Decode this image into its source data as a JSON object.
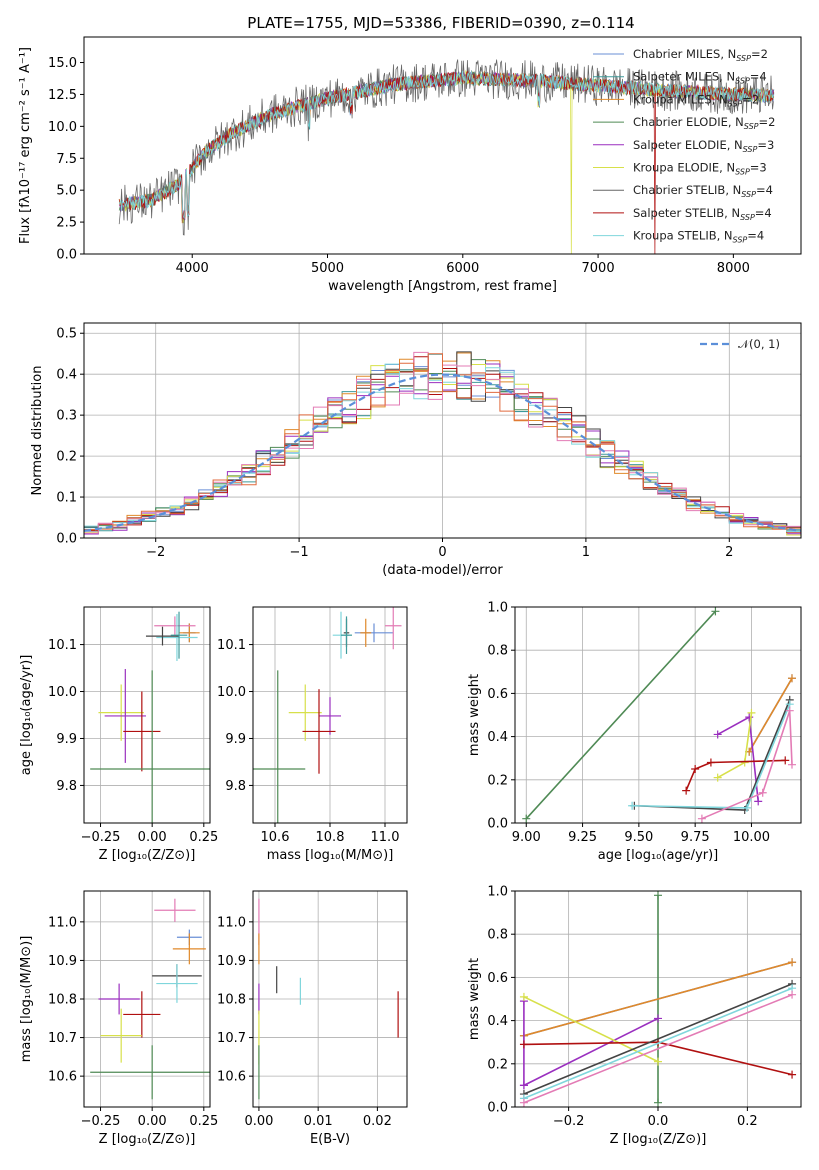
{
  "title": "PLATE=1755, MJD=53386, FIBERID=0390, z=0.114",
  "colors": {
    "Chabrier MILES": "#6a8fd6",
    "Salpeter MILES": "#3e9a9a",
    "Kroupa MILES": "#e0892a",
    "Chabrier ELODIE": "#4f8a55",
    "Salpeter ELODIE": "#9a2fbf",
    "Kroupa ELODIE": "#d7e04a",
    "Chabrier STELIB": "#444444",
    "Salpeter STELIB": "#b01010",
    "Kroupa STELIB": "#7fd6dc",
    "gauss": "#5b8fd9",
    "pink": "#e37bb5"
  },
  "legend": [
    {
      "name": "Chabrier MILES",
      "nssp": "2"
    },
    {
      "name": "Salpeter MILES",
      "nssp": "4"
    },
    {
      "name": "Kroupa MILES",
      "nssp": "2"
    },
    {
      "name": "Chabrier ELODIE",
      "nssp": "2"
    },
    {
      "name": "Salpeter ELODIE",
      "nssp": "3"
    },
    {
      "name": "Kroupa ELODIE",
      "nssp": "3"
    },
    {
      "name": "Chabrier STELIB",
      "nssp": "4"
    },
    {
      "name": "Salpeter STELIB",
      "nssp": "4"
    },
    {
      "name": "Kroupa STELIB",
      "nssp": "4"
    }
  ],
  "chart_data": [
    {
      "type": "line",
      "panel": "spectrum",
      "xlabel": "wavelength [Angstrom, rest frame]",
      "ylabel": "Flux [fλ10⁻¹⁷ erg cm⁻² s⁻¹ A⁻¹]",
      "xlim": [
        3200,
        8500
      ],
      "ylim": [
        0,
        17
      ],
      "xticks": [
        "4000",
        "5000",
        "6000",
        "7000",
        "8000"
      ],
      "yticks": [
        "0.0",
        "2.5",
        "5.0",
        "7.5",
        "10.0",
        "12.5",
        "15.0"
      ],
      "continuum": {
        "x": [
          3450,
          3700,
          3900,
          4100,
          4300,
          4600,
          5000,
          5500,
          6000,
          6500,
          7000,
          7500,
          8000,
          8300
        ],
        "y": [
          3.8,
          4.2,
          5.5,
          8.0,
          9.5,
          11.0,
          12.2,
          13.3,
          13.8,
          13.6,
          13.2,
          12.8,
          12.5,
          12.4
        ]
      }
    },
    {
      "type": "line",
      "panel": "residual-distribution",
      "xlabel": "(data-model)/error",
      "ylabel": "Normed distribution",
      "xlim": [
        -2.5,
        2.5
      ],
      "ylim": [
        0,
        0.525
      ],
      "xticks": [
        "−2",
        "−1",
        "0",
        "1",
        "2"
      ],
      "yticks": [
        "0.0",
        "0.1",
        "0.2",
        "0.3",
        "0.4",
        "0.5"
      ],
      "legend": "𝒩(0, 1)",
      "gaussian": {
        "mu": 0,
        "sigma": 1
      }
    },
    {
      "type": "scatter",
      "panel": "age-vs-Z",
      "xlabel": "Z [log₁₀(Z/Z⊙)]",
      "ylabel": "age  [log₁₀(age/yr)]",
      "xlim": [
        -0.33,
        0.28
      ],
      "ylim": [
        9.72,
        10.18
      ],
      "xticks": [
        "−0.25",
        "0.00",
        "0.25"
      ],
      "yticks": [
        "9.8",
        "9.9",
        "10.0",
        "10.1"
      ],
      "points": [
        {
          "series": "Chabrier MILES",
          "x": 0.18,
          "y": 10.125,
          "xerr": 0.03,
          "yerr": 0.02
        },
        {
          "series": "Kroupa MILES",
          "x": 0.18,
          "y": 10.125,
          "xerr": 0.05,
          "yerr": 0.02
        },
        {
          "series": "pink",
          "x": 0.11,
          "y": 10.14,
          "xerr": 0.1,
          "yerr": 0.02
        },
        {
          "series": "Kroupa STELIB",
          "x": 0.12,
          "y": 10.115,
          "xerr": 0.1,
          "yerr": 0.05
        },
        {
          "series": "Chabrier STELIB",
          "x": 0.05,
          "y": 10.118,
          "xerr": 0.08,
          "yerr": 0.02
        },
        {
          "series": "Salpeter MILES",
          "x": 0.13,
          "y": 10.12,
          "xerr": 0.04,
          "yerr": 0.05
        },
        {
          "series": "Kroupa ELODIE",
          "x": -0.15,
          "y": 9.955,
          "xerr": 0.11,
          "yerr": 0.06
        },
        {
          "series": "Salpeter ELODIE",
          "x": -0.13,
          "y": 9.948,
          "xerr": 0.1,
          "yerr": 0.1
        },
        {
          "series": "Salpeter STELIB",
          "x": -0.05,
          "y": 9.915,
          "xerr": 0.09,
          "yerr": 0.085
        },
        {
          "series": "Chabrier ELODIE",
          "x": 0.0,
          "y": 9.835,
          "xerr": 0.3,
          "yerr": 0.21
        }
      ]
    },
    {
      "type": "scatter",
      "panel": "age-vs-mass",
      "xlabel": "mass [log₁₀(M/M⊙)]",
      "ylabel": "",
      "xlim": [
        10.52,
        11.08
      ],
      "ylim": [
        9.72,
        10.18
      ],
      "xticks": [
        "10.6",
        "10.8",
        "11.0"
      ],
      "yticks": [
        "9.8",
        "9.9",
        "10.0",
        "10.1"
      ],
      "points": [
        {
          "series": "Chabrier MILES",
          "x": 10.96,
          "y": 10.125,
          "xerr": 0.07,
          "yerr": 0.02
        },
        {
          "series": "Kroupa MILES",
          "x": 10.93,
          "y": 10.125,
          "xerr": 0.02,
          "yerr": 0.03
        },
        {
          "series": "pink",
          "x": 11.03,
          "y": 10.14,
          "xerr": 0.03,
          "yerr": 0.05
        },
        {
          "series": "Kroupa STELIB",
          "x": 10.84,
          "y": 10.12,
          "xerr": 0.03,
          "yerr": 0.05
        },
        {
          "series": "Chabrier STELIB",
          "x": 10.86,
          "y": 10.125,
          "xerr": 0.01,
          "yerr": 0.03
        },
        {
          "series": "Salpeter MILES",
          "x": 10.86,
          "y": 10.12,
          "xerr": 0.02,
          "yerr": 0.04
        },
        {
          "series": "Kroupa ELODIE",
          "x": 10.71,
          "y": 9.955,
          "xerr": 0.06,
          "yerr": 0.06
        },
        {
          "series": "Salpeter ELODIE",
          "x": 10.8,
          "y": 9.948,
          "xerr": 0.04,
          "yerr": 0.04
        },
        {
          "series": "Salpeter STELIB",
          "x": 10.76,
          "y": 9.915,
          "xerr": 0.06,
          "yerr": 0.09
        },
        {
          "series": "Chabrier ELODIE",
          "x": 10.61,
          "y": 9.835,
          "xerr": 0.1,
          "yerr": 0.21
        }
      ]
    },
    {
      "type": "line",
      "panel": "mass-weight-vs-age",
      "xlabel": "age  [log₁₀(age/yr)]",
      "ylabel": "mass weight",
      "xlim": [
        8.95,
        10.22
      ],
      "ylim": [
        0,
        1
      ],
      "xticks": [
        "9.00",
        "9.25",
        "9.50",
        "9.75",
        "10.00"
      ],
      "yticks": [
        "0.0",
        "0.2",
        "0.4",
        "0.6",
        "0.8",
        "1.0"
      ],
      "series": [
        {
          "name": "Chabrier ELODIE",
          "x": [
            9.0,
            9.84
          ],
          "y": [
            0.02,
            0.98
          ]
        },
        {
          "name": "Chabrier MILES",
          "x": [
            9.99,
            10.18
          ],
          "y": [
            0.33,
            0.67
          ]
        },
        {
          "name": "Kroupa MILES",
          "x": [
            9.99,
            10.18
          ],
          "y": [
            0.33,
            0.67
          ]
        },
        {
          "name": "Salpeter ELODIE",
          "x": [
            9.85,
            9.99,
            10.03
          ],
          "y": [
            0.41,
            0.49,
            0.1
          ]
        },
        {
          "name": "Kroupa ELODIE",
          "x": [
            9.85,
            9.97,
            10.0
          ],
          "y": [
            0.21,
            0.28,
            0.51
          ]
        },
        {
          "name": "Salpeter STELIB",
          "x": [
            9.71,
            9.75,
            9.82,
            10.15
          ],
          "y": [
            0.15,
            0.25,
            0.28,
            0.29
          ]
        },
        {
          "name": "Chabrier STELIB",
          "x": [
            9.48,
            9.97,
            10.17
          ],
          "y": [
            0.08,
            0.06,
            0.57
          ]
        },
        {
          "name": "Kroupa STELIB",
          "x": [
            9.47,
            9.98,
            10.17
          ],
          "y": [
            0.08,
            0.07,
            0.55
          ]
        },
        {
          "name": "pink",
          "x": [
            9.78,
            10.05,
            10.17,
            10.18
          ],
          "y": [
            0.02,
            0.14,
            0.52,
            0.27
          ]
        }
      ]
    },
    {
      "type": "scatter",
      "panel": "mass-vs-Z",
      "xlabel": "Z [log₁₀(Z/Z⊙)]",
      "ylabel": "mass [log₁₀(M/M⊙)]",
      "xlim": [
        -0.33,
        0.28
      ],
      "ylim": [
        10.52,
        11.08
      ],
      "xticks": [
        "−0.25",
        "0.00",
        "0.25"
      ],
      "yticks": [
        "10.6",
        "10.7",
        "10.8",
        "10.9",
        "11.0"
      ],
      "points": [
        {
          "series": "pink",
          "x": 0.11,
          "y": 11.03,
          "xerr": 0.1,
          "yerr": 0.03
        },
        {
          "series": "Chabrier MILES",
          "x": 0.18,
          "y": 10.96,
          "xerr": 0.06,
          "yerr": 0.02
        },
        {
          "series": "Kroupa MILES",
          "x": 0.18,
          "y": 10.93,
          "xerr": 0.08,
          "yerr": 0.04
        },
        {
          "series": "Chabrier STELIB",
          "x": 0.12,
          "y": 10.86,
          "xerr": 0.12,
          "yerr": 0.03
        },
        {
          "series": "Kroupa STELIB",
          "x": 0.12,
          "y": 10.84,
          "xerr": 0.1,
          "yerr": 0.05
        },
        {
          "series": "Salpeter ELODIE",
          "x": -0.16,
          "y": 10.8,
          "xerr": 0.1,
          "yerr": 0.04
        },
        {
          "series": "Salpeter STELIB",
          "x": -0.05,
          "y": 10.76,
          "xerr": 0.09,
          "yerr": 0.06
        },
        {
          "series": "Kroupa ELODIE",
          "x": -0.15,
          "y": 10.705,
          "xerr": 0.1,
          "yerr": 0.07
        },
        {
          "series": "Chabrier ELODIE",
          "x": 0.0,
          "y": 10.61,
          "xerr": 0.3,
          "yerr": 0.07
        }
      ]
    },
    {
      "type": "scatter",
      "panel": "mass-vs-EBV",
      "xlabel": "E(B-V)",
      "ylabel": "",
      "xlim": [
        -0.001,
        0.025
      ],
      "ylim": [
        10.52,
        11.08
      ],
      "xticks": [
        "0.00",
        "0.01",
        "0.02"
      ],
      "yticks": [
        "10.6",
        "10.7",
        "10.8",
        "10.9",
        "11.0"
      ],
      "points": [
        {
          "series": "pink",
          "x": 0.0,
          "y": 11.0,
          "xerr": 0,
          "yerr": 0.06
        },
        {
          "series": "Kroupa MILES",
          "x": 0.0,
          "y": 10.93,
          "xerr": 0,
          "yerr": 0.04
        },
        {
          "series": "Chabrier STELIB",
          "x": 0.003,
          "y": 10.85,
          "xerr": 0,
          "yerr": 0.035
        },
        {
          "series": "Kroupa STELIB",
          "x": 0.007,
          "y": 10.82,
          "xerr": 0,
          "yerr": 0.035
        },
        {
          "series": "Salpeter STELIB",
          "x": 0.0235,
          "y": 10.76,
          "xerr": 0,
          "yerr": 0.06
        },
        {
          "series": "Salpeter ELODIE",
          "x": 0.0,
          "y": 10.8,
          "xerr": 0,
          "yerr": 0.04
        },
        {
          "series": "Kroupa ELODIE",
          "x": 0.0,
          "y": 10.7,
          "xerr": 0,
          "yerr": 0.07
        },
        {
          "series": "Chabrier ELODIE",
          "x": 0.0,
          "y": 10.61,
          "xerr": 0,
          "yerr": 0.07
        }
      ]
    },
    {
      "type": "line",
      "panel": "mass-weight-vs-Z",
      "xlabel": "Z [log₁₀(Z/Z⊙)]",
      "ylabel": "mass weight",
      "xlim": [
        -0.32,
        0.32
      ],
      "ylim": [
        0,
        1
      ],
      "xticks": [
        "−0.2",
        "0.0",
        "0.2"
      ],
      "yticks": [
        "0.0",
        "0.2",
        "0.4",
        "0.6",
        "0.8",
        "1.0"
      ],
      "series": [
        {
          "name": "Chabrier ELODIE",
          "x": [
            0.0,
            0.0
          ],
          "y": [
            0.02,
            0.98
          ]
        },
        {
          "name": "Chabrier MILES",
          "x": [
            -0.3,
            0.3
          ],
          "y": [
            0.33,
            0.67
          ]
        },
        {
          "name": "Kroupa MILES",
          "x": [
            -0.3,
            0.3
          ],
          "y": [
            0.33,
            0.67
          ]
        },
        {
          "name": "Salpeter ELODIE",
          "x": [
            -0.3,
            0.0
          ],
          "y": [
            0.1,
            0.41
          ]
        },
        {
          "name": "Salpeter ELODIE",
          "x": [
            -0.3,
            -0.3
          ],
          "y": [
            0.1,
            0.49
          ]
        },
        {
          "name": "Kroupa ELODIE",
          "x": [
            -0.3,
            0.0
          ],
          "y": [
            0.51,
            0.21
          ]
        },
        {
          "name": "Salpeter STELIB",
          "x": [
            -0.3,
            0.0,
            0.3
          ],
          "y": [
            0.29,
            0.3,
            0.15
          ]
        },
        {
          "name": "Chabrier STELIB",
          "x": [
            -0.3,
            0.3
          ],
          "y": [
            0.06,
            0.57
          ]
        },
        {
          "name": "Kroupa STELIB",
          "x": [
            -0.3,
            0.3
          ],
          "y": [
            0.04,
            0.55
          ]
        },
        {
          "name": "pink",
          "x": [
            -0.3,
            0.3
          ],
          "y": [
            0.02,
            0.52
          ]
        }
      ]
    }
  ]
}
